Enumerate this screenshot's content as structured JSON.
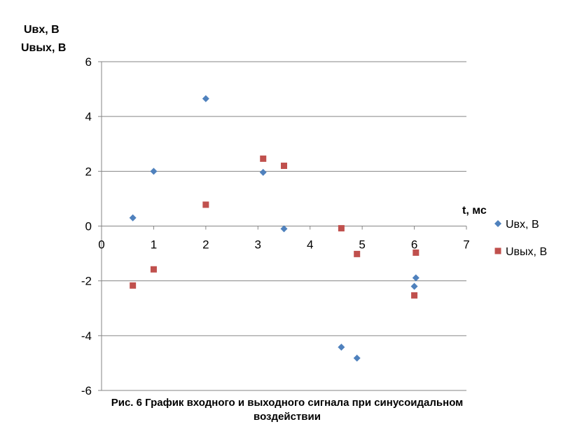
{
  "chart_data": {
    "type": "scatter",
    "ylabel_lines": [
      "Uвх, В",
      "Uвых, В"
    ],
    "xlabel": "t, мс",
    "xlim": [
      0,
      7
    ],
    "ylim": [
      -6,
      6
    ],
    "x_ticks": [
      0,
      1,
      2,
      3,
      4,
      5,
      6,
      7
    ],
    "y_ticks": [
      -6,
      -4,
      -2,
      0,
      2,
      4,
      6
    ],
    "grid": "horizontal",
    "legend_position": "right",
    "series": [
      {
        "name": "Uвх, В",
        "marker": "diamond",
        "color": "#4f81bd",
        "points": [
          {
            "x": 0.6,
            "y": 0.3
          },
          {
            "x": 1.0,
            "y": 2.0
          },
          {
            "x": 2.0,
            "y": 4.65
          },
          {
            "x": 3.1,
            "y": 1.96
          },
          {
            "x": 3.5,
            "y": -0.1
          },
          {
            "x": 4.6,
            "y": -4.42
          },
          {
            "x": 4.9,
            "y": -4.82
          },
          {
            "x": 6.0,
            "y": -2.2
          },
          {
            "x": 6.03,
            "y": -1.89
          }
        ]
      },
      {
        "name": "Uвых, В",
        "marker": "square",
        "color": "#c0504d",
        "points": [
          {
            "x": 0.6,
            "y": -2.17
          },
          {
            "x": 1.0,
            "y": -1.58
          },
          {
            "x": 2.0,
            "y": 0.78
          },
          {
            "x": 3.1,
            "y": 2.46
          },
          {
            "x": 3.5,
            "y": 2.2
          },
          {
            "x": 4.6,
            "y": -0.08
          },
          {
            "x": 4.9,
            "y": -1.02
          },
          {
            "x": 6.0,
            "y": -2.53
          },
          {
            "x": 6.03,
            "y": -0.97
          }
        ]
      }
    ],
    "caption_lines": [
      "Рис. 6 График входного и выходного сигнала при синусоидальном",
      "воздействии"
    ]
  }
}
